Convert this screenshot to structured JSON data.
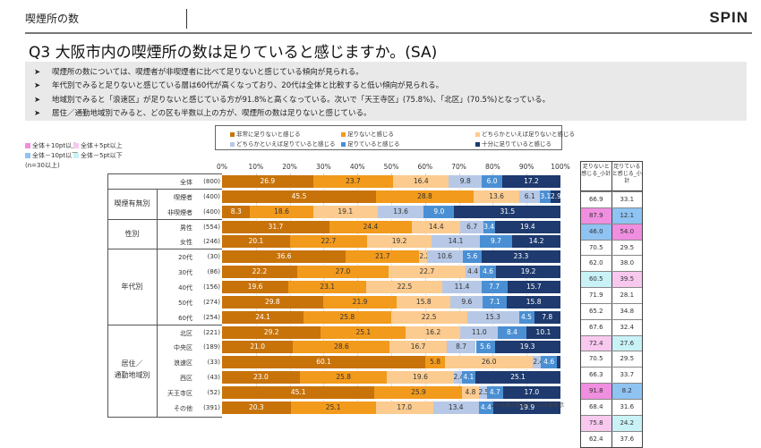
{
  "header": {
    "section_title": "喫煙所の数",
    "logo_text": "SPIN"
  },
  "question_title": "Q3 大阪市内の喫煙所の数は足りていると感じますか。(SA)",
  "summary": [
    "喫煙所の数については、喫煙者が非喫煙者に比べて足りないと感じている傾向が見られる。",
    "年代別でみると足りないと感じている層は60代が高くなっており、20代は全体と比較すると低い傾向が見られる。",
    "地域別でみると「浪速区」が足りないと感じている方が91.8%と高くなっている。次いで「天王寺区」(75.8%)、「北区」(70.5%)となっている。",
    "居住／通勤地域別でみると、どの区も半数以上の方が、喫煙所の数は足りないと感じている。"
  ],
  "highlight_key": {
    "items": [
      {
        "label": "全体＋10pt以上",
        "color": "#f08ee0"
      },
      {
        "label": "全体＋5pt以上",
        "color": "#f9c8ef"
      },
      {
        "label": "全体－10pt以下",
        "color": "#8fc3f2"
      },
      {
        "label": "全体－5pt以下",
        "color": "#c9f2f7"
      }
    ],
    "n_note": "(n=30以上)"
  },
  "subtotal_headers": [
    "足りないと感じる_小計",
    "足りていると感じる_小計"
  ],
  "note": "2%未満の数値ラベルは非表示",
  "chart_data": {
    "type": "bar",
    "orientation": "horizontal",
    "stacked": true,
    "title": "Q3 大阪市内の喫煙所の数は足りていると感じますか。(SA)",
    "xlabel": "",
    "ylabel": "",
    "xlim": [
      0,
      100
    ],
    "x_ticks": [
      "0%",
      "10%",
      "20%",
      "30%",
      "40%",
      "50%",
      "60%",
      "70%",
      "80%",
      "90%",
      "100%"
    ],
    "legend_position": "top",
    "series": [
      {
        "name": "非常に足りないと感じる",
        "color": "#c8730a",
        "text_color": "#ffffff"
      },
      {
        "name": "足りないと感じる",
        "color": "#f29a1c",
        "text_color": "#333333"
      },
      {
        "name": "どちらかといえば足りないと感じる",
        "color": "#fccb8f",
        "text_color": "#333333"
      },
      {
        "name": "どちらかといえば足りていると感じる",
        "color": "#b6c8e6",
        "text_color": "#333333"
      },
      {
        "name": "足りていると感じる",
        "color": "#4a8fd3",
        "text_color": "#ffffff"
      },
      {
        "name": "十分に足りていると感じる",
        "color": "#1e3a6e",
        "text_color": "#ffffff"
      }
    ],
    "rows": [
      {
        "group": "",
        "label": "全体",
        "n": "(800)",
        "values": [
          26.9,
          23.7,
          16.4,
          9.8,
          6.0,
          17.2
        ],
        "subtotal": [
          66.9,
          33.1
        ],
        "flags": [
          "",
          ""
        ]
      },
      {
        "group": "喫煙有無別",
        "label": "喫煙者",
        "n": "(400)",
        "values": [
          45.5,
          28.8,
          13.6,
          6.1,
          3.1,
          2.9
        ],
        "subtotal": [
          87.9,
          12.1
        ],
        "flags": [
          "+10",
          "-10"
        ]
      },
      {
        "group": "喫煙有無別",
        "label": "非喫煙者",
        "n": "(400)",
        "values": [
          8.3,
          18.6,
          19.1,
          13.6,
          9.0,
          31.5
        ],
        "subtotal": [
          46.0,
          54.0
        ],
        "flags": [
          "-10",
          "+10"
        ]
      },
      {
        "group": "性別",
        "label": "男性",
        "n": "(554)",
        "values": [
          31.7,
          24.4,
          14.4,
          6.7,
          3.4,
          19.4
        ],
        "subtotal": [
          70.5,
          29.5
        ],
        "flags": [
          "",
          ""
        ]
      },
      {
        "group": "性別",
        "label": "女性",
        "n": "(246)",
        "values": [
          20.1,
          22.7,
          19.2,
          14.1,
          9.7,
          14.2
        ],
        "subtotal": [
          62.0,
          38.0
        ],
        "flags": [
          "",
          ""
        ]
      },
      {
        "group": "年代別",
        "label": "20代",
        "n": "(30)",
        "values": [
          36.6,
          21.7,
          2.2,
          10.6,
          5.6,
          23.3
        ],
        "subtotal": [
          60.5,
          39.5
        ],
        "flags": [
          "-5",
          "+5"
        ]
      },
      {
        "group": "年代別",
        "label": "30代",
        "n": "(86)",
        "values": [
          22.2,
          27.0,
          22.7,
          4.4,
          4.6,
          19.2
        ],
        "subtotal": [
          71.9,
          28.1
        ],
        "flags": [
          "",
          ""
        ]
      },
      {
        "group": "年代別",
        "label": "40代",
        "n": "(156)",
        "values": [
          19.6,
          23.1,
          22.5,
          11.4,
          7.7,
          15.7
        ],
        "subtotal": [
          65.2,
          34.8
        ],
        "flags": [
          "",
          ""
        ]
      },
      {
        "group": "年代別",
        "label": "50代",
        "n": "(274)",
        "values": [
          29.8,
          21.9,
          15.8,
          9.6,
          7.1,
          15.8
        ],
        "subtotal": [
          67.6,
          32.4
        ],
        "flags": [
          "",
          ""
        ]
      },
      {
        "group": "年代別",
        "label": "60代",
        "n": "(254)",
        "values": [
          24.1,
          25.8,
          22.5,
          15.3,
          4.5,
          7.8
        ],
        "subtotal": [
          72.4,
          27.6
        ],
        "flags": [
          "+5",
          "-5"
        ]
      },
      {
        "group": "居住／通勤地域別",
        "label": "北区",
        "n": "(221)",
        "values": [
          29.2,
          25.1,
          16.2,
          11.0,
          8.4,
          10.1
        ],
        "subtotal": [
          70.5,
          29.5
        ],
        "flags": [
          "",
          ""
        ]
      },
      {
        "group": "居住／通勤地域別",
        "label": "中央区",
        "n": "(189)",
        "values": [
          21.0,
          28.6,
          16.7,
          8.7,
          5.6,
          19.3
        ],
        "subtotal": [
          66.3,
          33.7
        ],
        "flags": [
          "",
          ""
        ]
      },
      {
        "group": "居住／通勤地域別",
        "label": "浪速区",
        "n": "(33)",
        "values": [
          60.1,
          5.8,
          26.0,
          2.4,
          4.6,
          1.1
        ],
        "subtotal": [
          91.8,
          8.2
        ],
        "flags": [
          "+10",
          "-10"
        ]
      },
      {
        "group": "居住／通勤地域別",
        "label": "西区",
        "n": "(43)",
        "values": [
          23.0,
          25.8,
          19.6,
          2.4,
          4.1,
          25.1
        ],
        "subtotal": [
          68.4,
          31.6
        ],
        "flags": [
          "",
          ""
        ]
      },
      {
        "group": "居住／通勤地域別",
        "label": "天王寺区",
        "n": "(52)",
        "values": [
          45.1,
          25.9,
          4.8,
          2.5,
          4.7,
          17.0
        ],
        "subtotal": [
          75.8,
          24.2
        ],
        "flags": [
          "+5",
          "-5"
        ]
      },
      {
        "group": "居住／通勤地域別",
        "label": "その他",
        "n": "(391)",
        "values": [
          20.3,
          25.1,
          17.0,
          13.4,
          4.4,
          19.9
        ],
        "subtotal": [
          62.4,
          37.6
        ],
        "flags": [
          "",
          ""
        ]
      }
    ],
    "groups": [
      {
        "label": "喫煙有無別",
        "rows": [
          1,
          2
        ]
      },
      {
        "label": "性別",
        "rows": [
          3,
          4
        ]
      },
      {
        "label": "年代別",
        "rows": [
          5,
          9
        ]
      },
      {
        "label": "居住／\n通勤地域別",
        "rows": [
          10,
          15
        ]
      }
    ]
  }
}
